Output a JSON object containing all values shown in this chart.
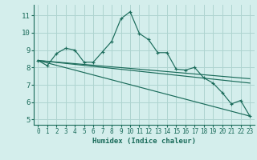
{
  "xlabel": "Humidex (Indice chaleur)",
  "bg_color": "#d4eeec",
  "grid_color": "#aed4d0",
  "line_color": "#1a6b5a",
  "xlim": [
    -0.5,
    23.5
  ],
  "ylim": [
    4.7,
    11.6
  ],
  "yticks": [
    5,
    6,
    7,
    8,
    9,
    10,
    11
  ],
  "xticks": [
    0,
    1,
    2,
    3,
    4,
    5,
    6,
    7,
    8,
    9,
    10,
    11,
    12,
    13,
    14,
    15,
    16,
    17,
    18,
    19,
    20,
    21,
    22,
    23
  ],
  "curve1_x": [
    0,
    1,
    2,
    3,
    4,
    5,
    6,
    7,
    8,
    9,
    10,
    11,
    12,
    13,
    14,
    15,
    16,
    17,
    18,
    19,
    20,
    21,
    22,
    23
  ],
  "curve1_y": [
    8.4,
    8.1,
    8.8,
    9.1,
    9.0,
    8.3,
    8.3,
    8.9,
    9.5,
    10.8,
    11.2,
    9.95,
    9.6,
    8.85,
    8.85,
    7.9,
    7.85,
    8.0,
    7.4,
    7.1,
    6.55,
    5.9,
    6.1,
    5.2
  ],
  "line1_x": [
    0,
    23
  ],
  "line1_y": [
    8.4,
    5.2
  ],
  "line2_x": [
    0,
    23
  ],
  "line2_y": [
    8.4,
    7.35
  ],
  "line3_x": [
    0,
    23
  ],
  "line3_y": [
    8.4,
    7.1
  ]
}
